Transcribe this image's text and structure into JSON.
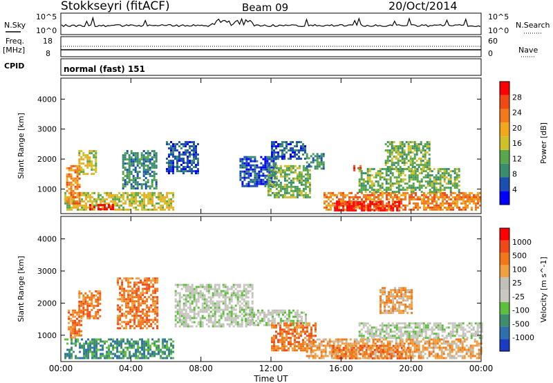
{
  "header": {
    "station": "Stokkseyri (fitACF)",
    "beam": "Beam 09",
    "date": "20/Oct/2014"
  },
  "ancillary": {
    "nsky_label": "N.Sky",
    "nsearch_label": "N.Search",
    "nsky_ticks": [
      "10^5",
      "10^0"
    ],
    "freq_label_1": "Freq.",
    "freq_label_2": "[MHz]",
    "freq_ticks": [
      "18",
      "8"
    ],
    "nave_label": "Nave",
    "nave_ticks": [
      "60",
      "0"
    ],
    "cpid_label": "CPID",
    "cpid_value": "normal (fast) 151"
  },
  "colors": {
    "power_scale": [
      "#0000ff",
      "#1a4fb0",
      "#3a8c6e",
      "#5aa64b",
      "#cfc02a",
      "#f2a81c",
      "#f27a1a",
      "#f04a14",
      "#ff0000"
    ],
    "velocity_scale": [
      "#1a3cc0",
      "#2f6fb0",
      "#3e8e6e",
      "#5cbf3d",
      "#c8c8c0",
      "#c0c0b8",
      "#f0a040",
      "#f07818",
      "#f04818",
      "#ff0000"
    ]
  },
  "chart_data": [
    {
      "type": "heatmap",
      "name": "power",
      "ylabel": "Slant Range [km]",
      "xlabel": "Time UT",
      "x_ticks": [
        "00:00",
        "04:00",
        "08:00",
        "12:00",
        "16:00",
        "20:00",
        "00:00"
      ],
      "y_ticks": [
        "1000",
        "2000",
        "3000",
        "4000"
      ],
      "ylim": [
        180,
        4700
      ],
      "xlim_hours": [
        0,
        24
      ],
      "colorbar_label": "Power [dB]",
      "colorbar_ticks": [
        "28",
        "24",
        "20",
        "16",
        "12",
        "8",
        "4"
      ],
      "regions": [
        {
          "t0": 0.2,
          "t1": 6.4,
          "r0": 300,
          "r1": 900,
          "level": 4
        },
        {
          "t0": 1.5,
          "t1": 3.0,
          "r0": 300,
          "r1": 500,
          "level": 8
        },
        {
          "t0": 0.3,
          "t1": 1.1,
          "r0": 500,
          "r1": 1800,
          "level": 6
        },
        {
          "t0": 1.0,
          "t1": 2.0,
          "r0": 1500,
          "r1": 2300,
          "level": 4
        },
        {
          "t0": 3.5,
          "t1": 5.5,
          "r0": 1000,
          "r1": 2300,
          "level": 2
        },
        {
          "t0": 6.0,
          "t1": 7.8,
          "r0": 1500,
          "r1": 2600,
          "level": 1
        },
        {
          "t0": 10.2,
          "t1": 12.3,
          "r0": 1100,
          "r1": 2100,
          "level": 1
        },
        {
          "t0": 11.8,
          "t1": 14.2,
          "r0": 700,
          "r1": 1800,
          "level": 3
        },
        {
          "t0": 12.0,
          "t1": 14.0,
          "r0": 2000,
          "r1": 2600,
          "level": 1
        },
        {
          "t0": 14.0,
          "t1": 15.0,
          "r0": 1700,
          "r1": 2200,
          "level": 2
        },
        {
          "t0": 15.0,
          "t1": 24.0,
          "r0": 300,
          "r1": 900,
          "level": 6
        },
        {
          "t0": 15.6,
          "t1": 19.3,
          "r0": 300,
          "r1": 600,
          "level": 8
        },
        {
          "t0": 16.7,
          "t1": 17.1,
          "r0": 1600,
          "r1": 1800,
          "level": 7
        },
        {
          "t0": 17.0,
          "t1": 22.8,
          "r0": 900,
          "r1": 1700,
          "level": 3
        },
        {
          "t0": 18.5,
          "t1": 21.0,
          "r0": 1700,
          "r1": 2600,
          "level": 3
        }
      ]
    },
    {
      "type": "heatmap",
      "name": "velocity",
      "ylabel": "Slant Range [km]",
      "xlabel": "Time UT",
      "x_ticks": [
        "00:00",
        "04:00",
        "08:00",
        "12:00",
        "16:00",
        "20:00",
        "00:00"
      ],
      "y_ticks": [
        "1000",
        "2000",
        "3000",
        "4000"
      ],
      "ylim": [
        180,
        4700
      ],
      "xlim_hours": [
        0,
        24
      ],
      "colorbar_label": "Velocity [m s^-1]",
      "colorbar_ticks": [
        "1000",
        "500",
        "100",
        "25",
        "-25",
        "-100",
        "-500",
        "-1000"
      ],
      "regions": [
        {
          "t0": 0.2,
          "t1": 6.4,
          "r0": 300,
          "r1": 900,
          "level": 2
        },
        {
          "t0": 0.4,
          "t1": 1.2,
          "r0": 900,
          "r1": 1800,
          "level": 7
        },
        {
          "t0": 1.0,
          "t1": 2.2,
          "r0": 1500,
          "r1": 2400,
          "level": 7
        },
        {
          "t0": 3.2,
          "t1": 5.5,
          "r0": 1200,
          "r1": 2800,
          "level": 7
        },
        {
          "t0": 6.5,
          "t1": 11.0,
          "r0": 1300,
          "r1": 2600,
          "level": 4
        },
        {
          "t0": 10.5,
          "t1": 14.0,
          "r0": 1300,
          "r1": 1800,
          "level": 4
        },
        {
          "t0": 12.0,
          "t1": 14.5,
          "r0": 500,
          "r1": 1400,
          "level": 7
        },
        {
          "t0": 14.0,
          "t1": 24.0,
          "r0": 300,
          "r1": 900,
          "level": 6
        },
        {
          "t0": 15.5,
          "t1": 20.0,
          "r0": 300,
          "r1": 700,
          "level": 7
        },
        {
          "t0": 17.0,
          "t1": 24.0,
          "r0": 900,
          "r1": 1400,
          "level": 4
        },
        {
          "t0": 18.2,
          "t1": 20.0,
          "r0": 1700,
          "r1": 2500,
          "level": 6
        }
      ]
    }
  ]
}
